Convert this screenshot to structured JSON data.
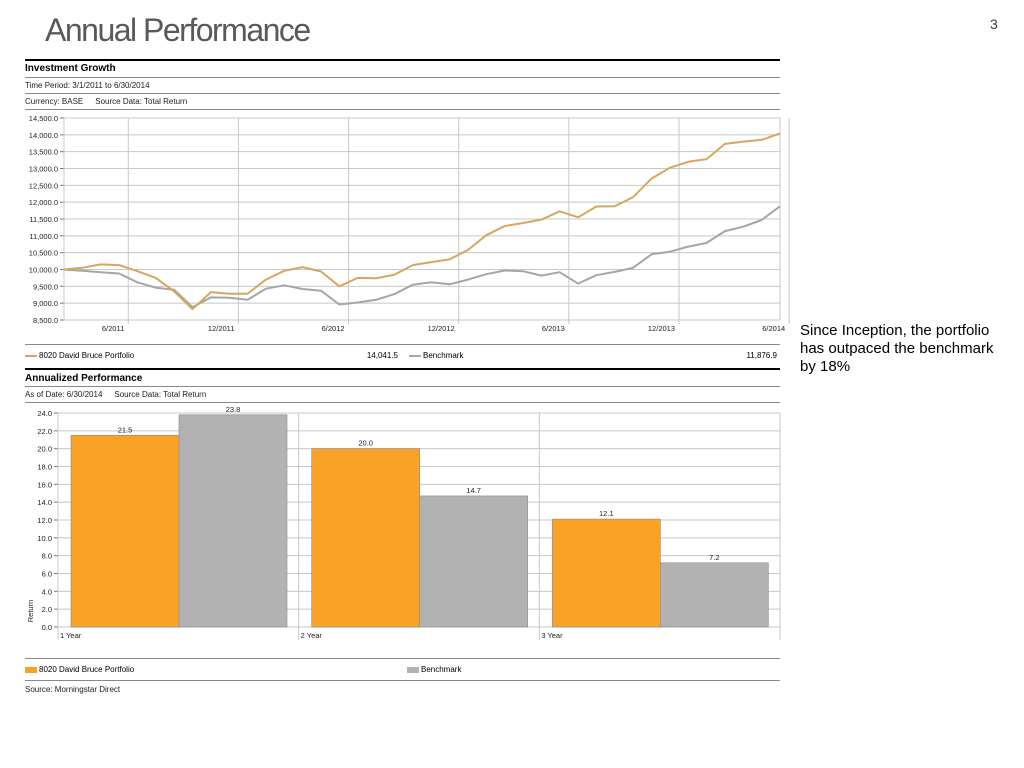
{
  "page": {
    "title": "Annual Performance",
    "number": "3",
    "callout": "Since Inception, the portfolio has outpaced the benchmark by 18%",
    "source": "Source: Morningstar Direct"
  },
  "growth": {
    "title": "Investment Growth",
    "time_period": "Time Period: 3/1/2011 to 6/30/2014",
    "currency": "Currency: BASE",
    "source_data": "Source Data: Total Return",
    "legend": [
      {
        "name": "8020 David Bruce Portfolio",
        "value": "14,041.5",
        "color": "#D8A65C"
      },
      {
        "name": "Benchmark",
        "value": "11,876.9",
        "color": "#A6A6A6"
      }
    ]
  },
  "annualized": {
    "title": "Annualized Performance",
    "as_of": "As of Date: 6/30/2014",
    "source_data": "Source Data: Total Return",
    "legend": [
      {
        "name": "8020 David Bruce Portfolio",
        "color": "#F9A225"
      },
      {
        "name": "Benchmark",
        "color": "#B2B2B2"
      }
    ]
  },
  "chart_data": [
    {
      "type": "line",
      "title": "Investment Growth",
      "ylim": [
        8500,
        14500
      ],
      "yticks": [
        8500,
        9000,
        9500,
        10000,
        10500,
        11000,
        11500,
        12000,
        12500,
        13000,
        13500,
        14000,
        14500
      ],
      "ytick_labels": [
        "8,500.0",
        "9,000.0",
        "9,500.0",
        "10,000.0",
        "10,500.0",
        "11,000.0",
        "11,500.0",
        "12,000.0",
        "12,500.0",
        "13,000.0",
        "13,500.0",
        "14,000.0",
        "14,500.0"
      ],
      "x_months": [
        "2011-03",
        "2011-04",
        "2011-05",
        "2011-06",
        "2011-07",
        "2011-08",
        "2011-09",
        "2011-10",
        "2011-11",
        "2011-12",
        "2012-01",
        "2012-02",
        "2012-03",
        "2012-04",
        "2012-05",
        "2012-06",
        "2012-07",
        "2012-08",
        "2012-09",
        "2012-10",
        "2012-11",
        "2012-12",
        "2013-01",
        "2013-02",
        "2013-03",
        "2013-04",
        "2013-05",
        "2013-06",
        "2013-07",
        "2013-08",
        "2013-09",
        "2013-10",
        "2013-11",
        "2013-12",
        "2014-01",
        "2014-02",
        "2014-03",
        "2014-04",
        "2014-05",
        "2014-06"
      ],
      "xticks": [
        {
          "label": "6/2011",
          "index": 3
        },
        {
          "label": "12/2011",
          "index": 9
        },
        {
          "label": "6/2012",
          "index": 15
        },
        {
          "label": "12/2012",
          "index": 21
        },
        {
          "label": "6/2013",
          "index": 27
        },
        {
          "label": "12/2013",
          "index": 33
        },
        {
          "label": "6/2014",
          "index": 39
        }
      ],
      "grid": true,
      "series": [
        {
          "name": "8020 David Bruce Portfolio",
          "color": "#D8A65C",
          "values": [
            10000,
            10050,
            10150,
            10130,
            9950,
            9750,
            9350,
            8820,
            9330,
            9280,
            9280,
            9700,
            9960,
            10070,
            9940,
            9500,
            9750,
            9740,
            9850,
            10130,
            10220,
            10300,
            10580,
            11020,
            11290,
            11380,
            11480,
            11730,
            11550,
            11870,
            11880,
            12150,
            12700,
            13020,
            13200,
            13280,
            13730,
            13800,
            13850,
            14041.5
          ]
        },
        {
          "name": "Benchmark",
          "color": "#A6A6A6",
          "values": [
            10000,
            9960,
            9920,
            9880,
            9620,
            9460,
            9400,
            8880,
            9170,
            9160,
            9100,
            9430,
            9530,
            9420,
            9370,
            8960,
            9020,
            9100,
            9270,
            9550,
            9620,
            9560,
            9700,
            9860,
            9970,
            9950,
            9820,
            9920,
            9580,
            9830,
            9930,
            10050,
            10450,
            10530,
            10680,
            10790,
            11140,
            11270,
            11470,
            11876.9
          ]
        }
      ]
    },
    {
      "type": "bar",
      "title": "Annualized Performance",
      "categories": [
        "1 Year",
        "2 Year",
        "3 Year"
      ],
      "ylabel": "Return",
      "ylim": [
        0,
        24
      ],
      "yticks": [
        0,
        2,
        4,
        6,
        8,
        10,
        12,
        14,
        16,
        18,
        20,
        22,
        24
      ],
      "ytick_labels": [
        "0.0",
        "2.0",
        "4.0",
        "6.0",
        "8.0",
        "10.0",
        "12.0",
        "14.0",
        "16.0",
        "18.0",
        "20.0",
        "22.0",
        "24.0"
      ],
      "grid": true,
      "series": [
        {
          "name": "8020 David Bruce Portfolio",
          "color": "#F9A225",
          "values": [
            21.5,
            20.0,
            12.1
          ],
          "labels": [
            "21.5",
            "20.0",
            "12.1"
          ]
        },
        {
          "name": "Benchmark",
          "color": "#B2B2B2",
          "values": [
            23.8,
            14.7,
            7.2
          ],
          "labels": [
            "23.8",
            "14.7",
            "7.2"
          ]
        }
      ]
    }
  ]
}
